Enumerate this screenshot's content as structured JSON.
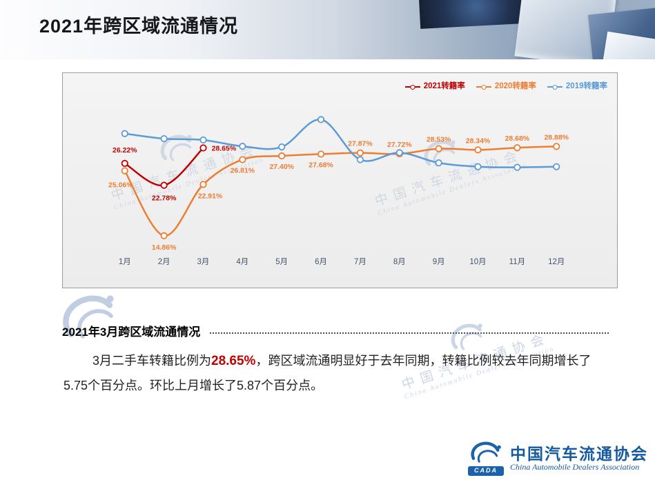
{
  "header": {
    "title": "2021年跨区域流通情况"
  },
  "colors": {
    "highlight_red": "#c00000",
    "brand_blue": "#1b62ab",
    "axis_label": "#44546a"
  },
  "chart_data": {
    "type": "line",
    "title": "",
    "categories": [
      "1月",
      "2月",
      "3月",
      "4月",
      "5月",
      "6月",
      "7月",
      "8月",
      "9月",
      "10月",
      "11月",
      "12月"
    ],
    "series": [
      {
        "name": "2021转籍率",
        "color": "#c00000",
        "values": [
          26.22,
          22.78,
          28.65,
          null,
          null,
          null,
          null,
          null,
          null,
          null,
          null,
          null
        ],
        "labels": [
          "26.22%",
          "22.78%",
          "28.65%",
          null,
          null,
          null,
          null,
          null,
          null,
          null,
          null,
          null
        ],
        "label_offsets": [
          [
            0,
            -16
          ],
          [
            0,
            22
          ],
          [
            30,
            4
          ]
        ]
      },
      {
        "name": "2020转籍率",
        "color": "#ed7d31",
        "values": [
          25.06,
          14.86,
          22.91,
          26.81,
          27.4,
          27.68,
          27.87,
          27.72,
          28.53,
          28.34,
          28.68,
          28.88
        ],
        "labels": [
          "25.06%",
          "14.86%",
          "22.91%",
          "26.81%",
          "27.40%",
          "27.68%",
          "27.87%",
          "27.72%",
          "28.53%",
          "28.34%",
          "28.68%",
          "28.88%"
        ],
        "label_offsets": [
          [
            -6,
            24
          ],
          [
            0,
            20
          ],
          [
            10,
            20
          ],
          [
            0,
            19
          ],
          [
            0,
            19
          ],
          [
            0,
            19
          ],
          [
            0,
            -10
          ],
          [
            0,
            -10
          ],
          [
            0,
            -10
          ],
          [
            0,
            -10
          ],
          [
            0,
            -10
          ],
          [
            0,
            -10
          ]
        ]
      },
      {
        "name": "2019转籍率",
        "color": "#5b9bd5",
        "values": [
          30.9,
          30.1,
          29.9,
          28.9,
          28.8,
          33.1,
          26.8,
          27.9,
          26.3,
          25.7,
          25.6,
          25.7
        ],
        "labels": null,
        "label_offsets": null
      }
    ],
    "ylim": [
      13,
      34
    ],
    "grid": false,
    "legend_position": "top-right",
    "xlabel": "",
    "ylabel": ""
  },
  "section": {
    "heading": "2021年3月跨区域流通情况",
    "text_before": "3月二手车转籍比例为",
    "highlight": "28.65%",
    "text_mid": "，跨区域流通明显好于去年同期，转籍比例较去年同期增长了",
    "line2": "5.75个百分点。环比上月增长了5.87个百分点。"
  },
  "footer_logo": {
    "cn": "中国汽车流通协会",
    "en": "China Automobile Dealers Association",
    "badge": "CADA"
  }
}
